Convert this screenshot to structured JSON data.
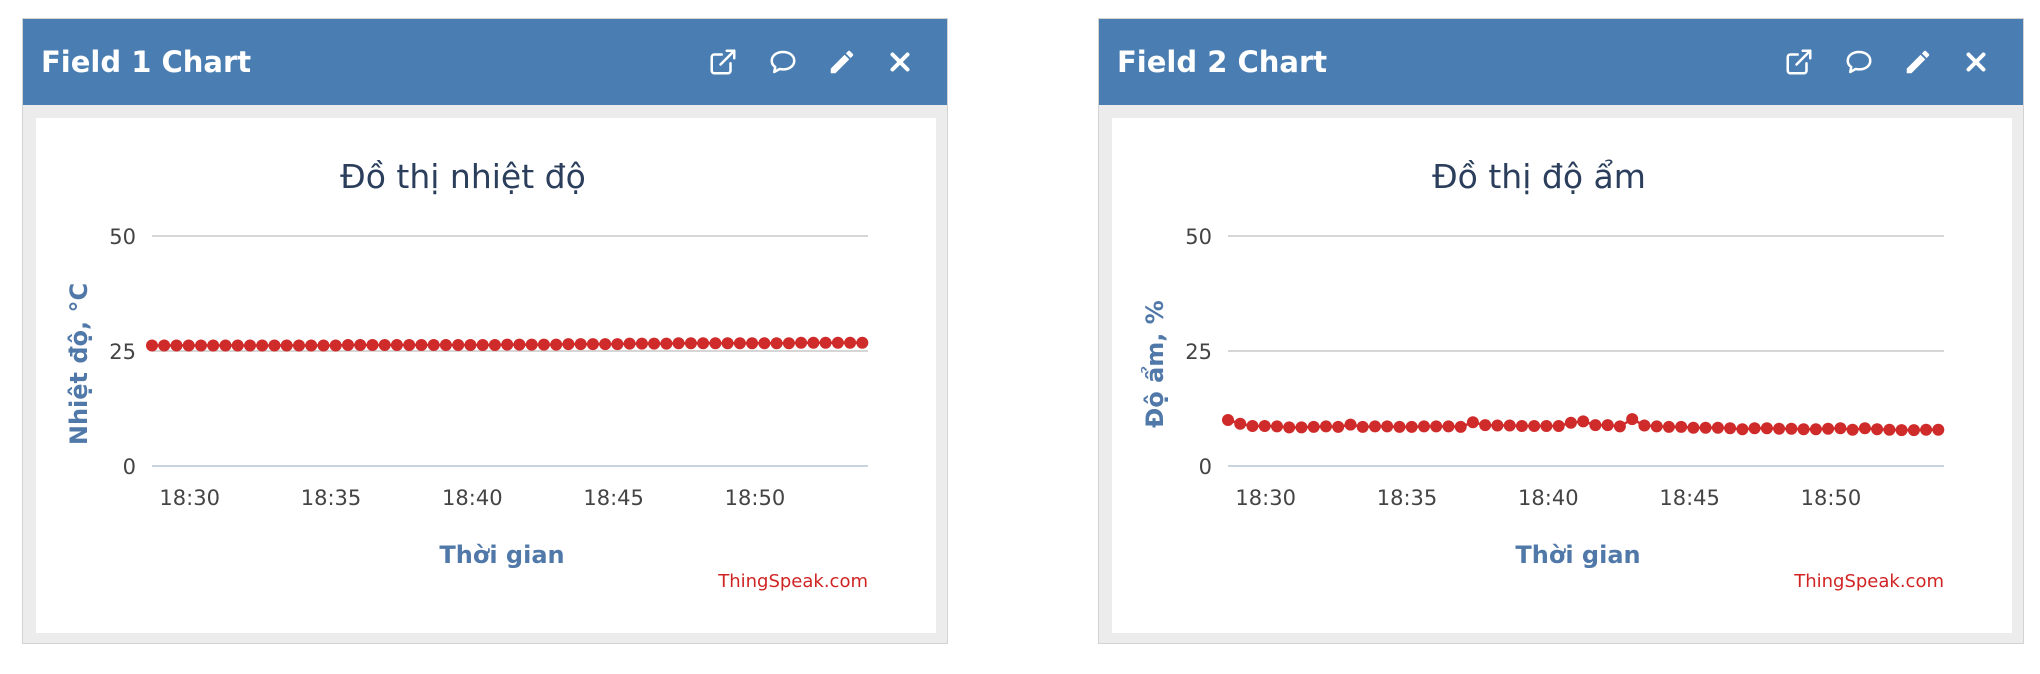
{
  "colors": {
    "header": "#4a7eb2",
    "series": "#cf2b2b",
    "credit": "#d02424",
    "axis_label": "#5078a8"
  },
  "icons": [
    "external-link-icon",
    "comment-icon",
    "pencil-icon",
    "close-icon"
  ],
  "panels": [
    {
      "title": "Field 1 Chart",
      "chart_title": "Đồ thị nhiệt độ",
      "credit": "ThingSpeak.com"
    },
    {
      "title": "Field 2 Chart",
      "chart_title": "Đồ thị độ ẩm",
      "credit": "ThingSpeak.com"
    }
  ],
  "chart_data": [
    {
      "type": "line",
      "title": "Đồ thị nhiệt độ",
      "xlabel": "Thời gian",
      "ylabel": "Nhiệt độ, °C",
      "ylim": [
        0,
        50
      ],
      "yticks": [
        "0",
        "25",
        "50"
      ],
      "xlim": [
        "18:28:40",
        "18:54:00"
      ],
      "xticks": [
        "18:30",
        "18:35",
        "18:40",
        "18:45",
        "18:50"
      ],
      "grid": true,
      "legend": "none",
      "series": [
        {
          "x": [
            "18:28:40",
            "18:29:06",
            "18:29:32",
            "18:29:58",
            "18:30:24",
            "18:30:50",
            "18:31:16",
            "18:31:42",
            "18:32:08",
            "18:32:34",
            "18:33:00",
            "18:33:26",
            "18:33:52",
            "18:34:18",
            "18:34:44",
            "18:35:10",
            "18:35:36",
            "18:36:02",
            "18:36:28",
            "18:36:54",
            "18:37:20",
            "18:37:46",
            "18:38:12",
            "18:38:38",
            "18:39:04",
            "18:39:30",
            "18:39:56",
            "18:40:22",
            "18:40:48",
            "18:41:14",
            "18:41:40",
            "18:42:06",
            "18:42:32",
            "18:42:58",
            "18:43:24",
            "18:43:50",
            "18:44:16",
            "18:44:42",
            "18:45:08",
            "18:45:34",
            "18:46:00",
            "18:46:26",
            "18:46:52",
            "18:47:18",
            "18:47:44",
            "18:48:10",
            "18:48:36",
            "18:49:02",
            "18:49:28",
            "18:49:54",
            "18:50:20",
            "18:50:46",
            "18:51:12",
            "18:51:38",
            "18:52:04",
            "18:52:30",
            "18:52:56",
            "18:53:22",
            "18:53:48"
          ],
          "values": [
            26.2,
            26.2,
            26.2,
            26.2,
            26.2,
            26.2,
            26.2,
            26.2,
            26.2,
            26.2,
            26.2,
            26.2,
            26.2,
            26.2,
            26.2,
            26.2,
            26.3,
            26.3,
            26.3,
            26.3,
            26.3,
            26.3,
            26.3,
            26.3,
            26.3,
            26.3,
            26.3,
            26.3,
            26.3,
            26.4,
            26.4,
            26.4,
            26.4,
            26.4,
            26.5,
            26.5,
            26.5,
            26.5,
            26.5,
            26.6,
            26.6,
            26.6,
            26.6,
            26.7,
            26.7,
            26.7,
            26.7,
            26.7,
            26.7,
            26.7,
            26.7,
            26.7,
            26.7,
            26.8,
            26.8,
            26.8,
            26.8,
            26.8,
            26.8
          ]
        }
      ]
    },
    {
      "type": "line",
      "title": "Đồ thị độ ẩm",
      "xlabel": "Thời gian",
      "ylabel": "Độ ẩm, %",
      "ylim": [
        0,
        50
      ],
      "yticks": [
        "0",
        "25",
        "50"
      ],
      "xlim": [
        "18:28:40",
        "18:54:00"
      ],
      "xticks": [
        "18:30",
        "18:35",
        "18:40",
        "18:45",
        "18:50"
      ],
      "grid": true,
      "legend": "none",
      "series": [
        {
          "x": [
            "18:28:40",
            "18:29:06",
            "18:29:32",
            "18:29:58",
            "18:30:24",
            "18:30:50",
            "18:31:16",
            "18:31:42",
            "18:32:08",
            "18:32:34",
            "18:33:00",
            "18:33:26",
            "18:33:52",
            "18:34:18",
            "18:34:44",
            "18:35:10",
            "18:35:36",
            "18:36:02",
            "18:36:28",
            "18:36:54",
            "18:37:20",
            "18:37:46",
            "18:38:12",
            "18:38:38",
            "18:39:04",
            "18:39:30",
            "18:39:56",
            "18:40:22",
            "18:40:48",
            "18:41:14",
            "18:41:40",
            "18:42:06",
            "18:42:32",
            "18:42:58",
            "18:43:24",
            "18:43:50",
            "18:44:16",
            "18:44:42",
            "18:45:08",
            "18:45:34",
            "18:46:00",
            "18:46:26",
            "18:46:52",
            "18:47:18",
            "18:47:44",
            "18:48:10",
            "18:48:36",
            "18:49:02",
            "18:49:28",
            "18:49:54",
            "18:50:20",
            "18:50:46",
            "18:51:12",
            "18:51:38",
            "18:52:04",
            "18:52:30",
            "18:52:56",
            "18:53:22",
            "18:53:48"
          ],
          "values": [
            10.0,
            9.2,
            8.7,
            8.7,
            8.6,
            8.4,
            8.4,
            8.5,
            8.6,
            8.5,
            9.0,
            8.5,
            8.6,
            8.6,
            8.5,
            8.5,
            8.6,
            8.6,
            8.6,
            8.5,
            9.5,
            8.9,
            8.8,
            8.8,
            8.7,
            8.7,
            8.7,
            8.7,
            9.4,
            9.7,
            8.9,
            8.9,
            8.6,
            10.2,
            8.8,
            8.6,
            8.5,
            8.5,
            8.3,
            8.3,
            8.3,
            8.2,
            8.0,
            8.2,
            8.2,
            8.1,
            8.1,
            8.0,
            8.0,
            8.1,
            8.2,
            7.9,
            8.2,
            8.0,
            7.9,
            7.8,
            7.8,
            7.9,
            7.9
          ]
        }
      ]
    }
  ]
}
